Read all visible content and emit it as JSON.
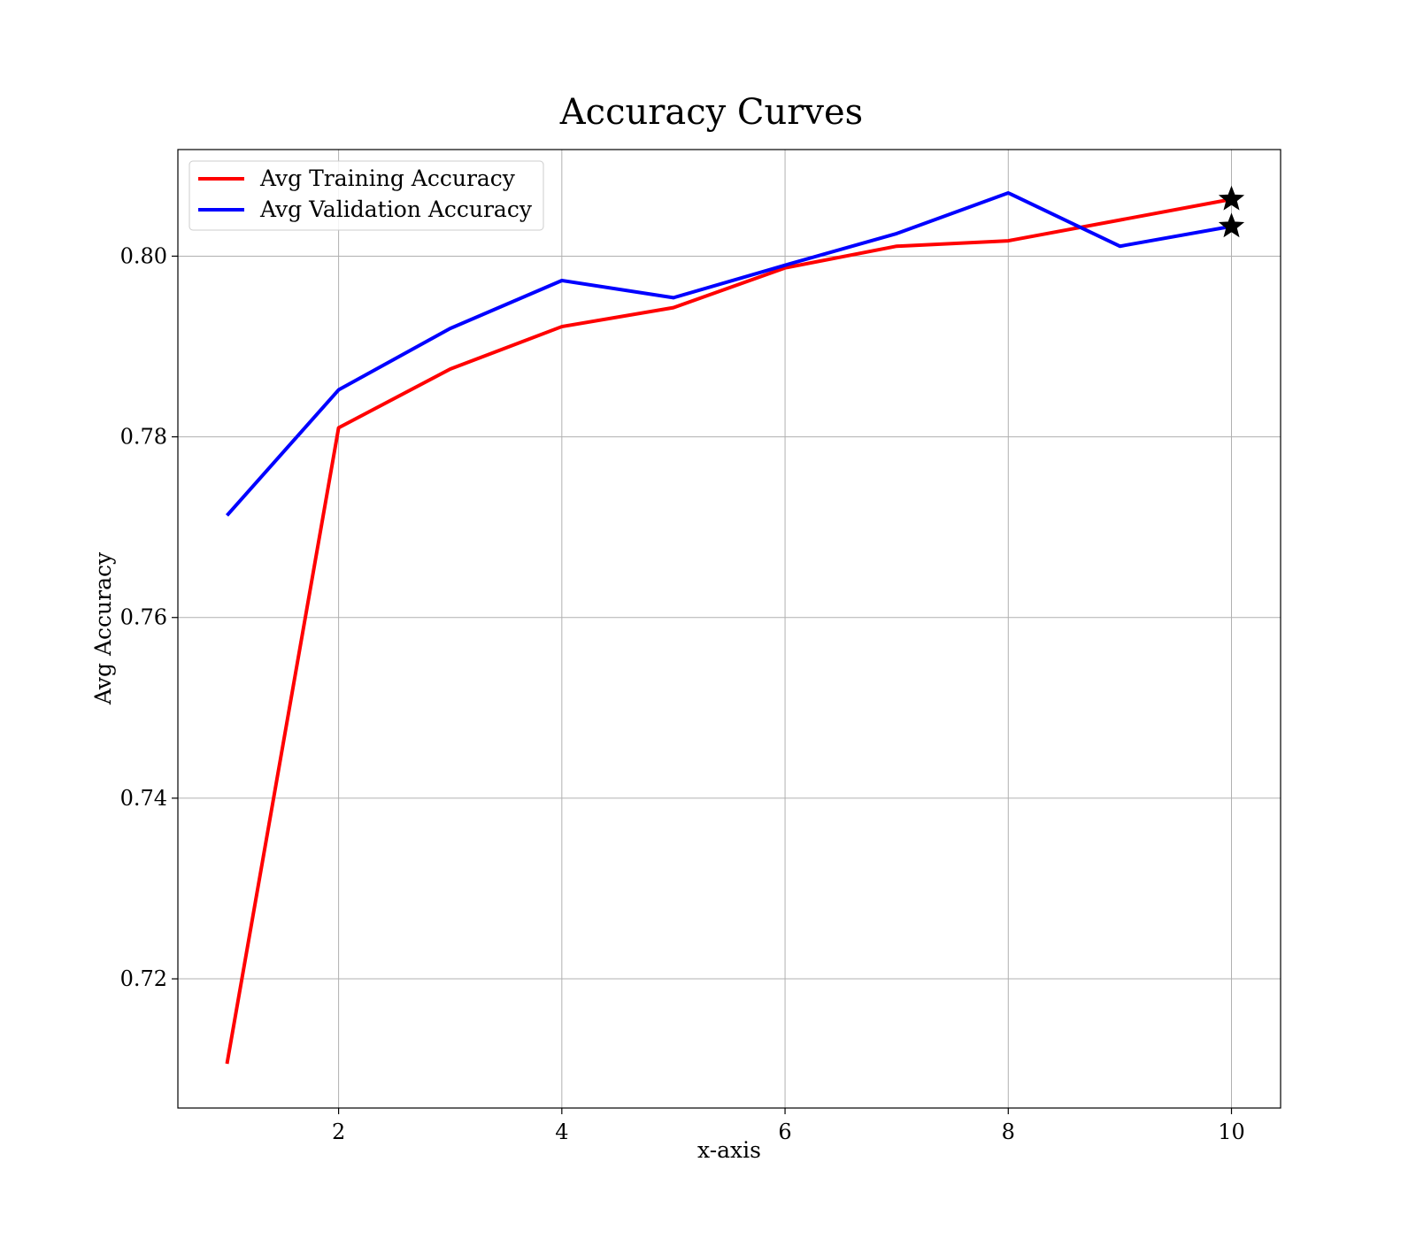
{
  "chart_data": {
    "type": "line",
    "title": "Accuracy Curves",
    "xlabel": "x-axis",
    "ylabel": "Avg Accuracy",
    "xlim": [
      0.56,
      10.44
    ],
    "ylim": [
      0.7057,
      0.8118
    ],
    "xticks": [
      2,
      4,
      6,
      8,
      10
    ],
    "xtick_labels": [
      "2",
      "4",
      "6",
      "8",
      "10"
    ],
    "yticks": [
      0.72,
      0.74,
      0.76,
      0.78,
      0.8
    ],
    "ytick_labels": [
      "0.72",
      "0.74",
      "0.76",
      "0.78",
      "0.80"
    ],
    "grid": true,
    "legend_position": "top-left",
    "x": [
      1,
      2,
      3,
      4,
      5,
      6,
      7,
      8,
      9,
      10
    ],
    "series": [
      {
        "name": "Avg Training Accuracy",
        "color": "#ff0000",
        "values": [
          0.7106,
          0.781,
          0.7875,
          0.7922,
          0.7943,
          0.7987,
          0.8011,
          0.8017,
          0.804,
          0.8063
        ],
        "marker_last": "star"
      },
      {
        "name": "Avg Validation Accuracy",
        "color": "#0000ff",
        "values": [
          0.7713,
          0.7852,
          0.792,
          0.7973,
          0.7954,
          0.799,
          0.8025,
          0.807,
          0.8011,
          0.8033
        ],
        "marker_last": "star"
      }
    ]
  }
}
